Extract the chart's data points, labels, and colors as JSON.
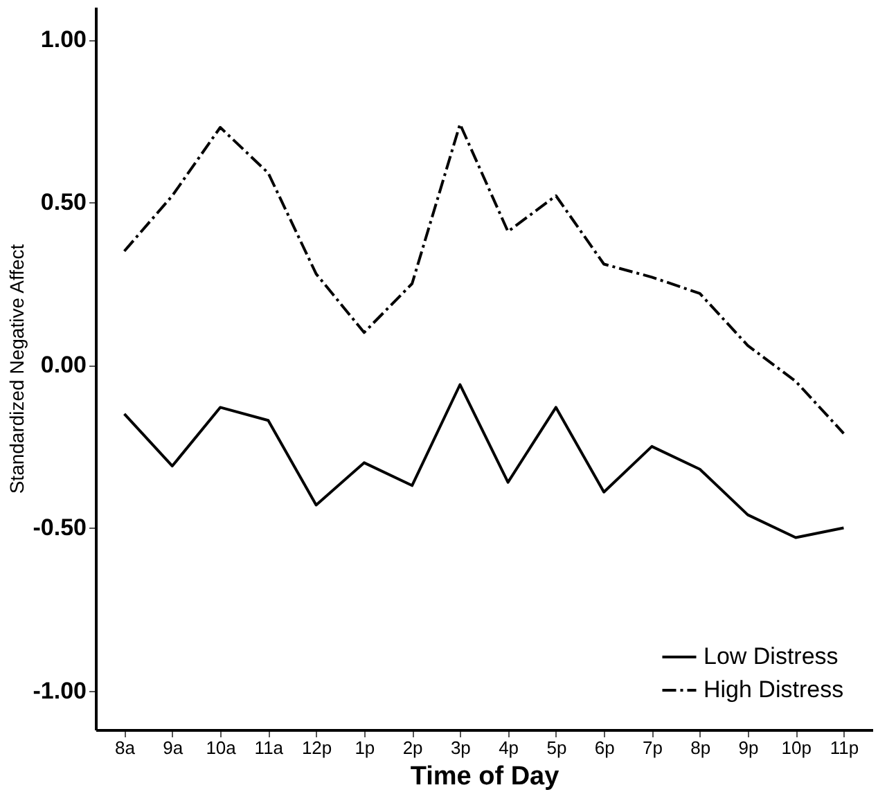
{
  "chart_data": {
    "type": "line",
    "xlabel": "Time of Day",
    "ylabel": "Standardized Negative Affect",
    "categories": [
      "8a",
      "9a",
      "10a",
      "11a",
      "12p",
      "1p",
      "2p",
      "3p",
      "4p",
      "5p",
      "6p",
      "7p",
      "8p",
      "9p",
      "10p",
      "11p"
    ],
    "series": [
      {
        "name": "Low Distress",
        "color": "#000000",
        "line_style": "solid",
        "values": [
          -0.15,
          -0.31,
          -0.13,
          -0.17,
          -0.43,
          -0.3,
          -0.37,
          -0.06,
          -0.36,
          -0.13,
          -0.39,
          -0.25,
          -0.32,
          -0.46,
          -0.53,
          -0.5
        ]
      },
      {
        "name": "High Distress",
        "color": "#000000",
        "line_style": "dashdot",
        "values": [
          0.35,
          0.52,
          0.73,
          0.59,
          0.28,
          0.1,
          0.25,
          0.74,
          0.41,
          0.52,
          0.31,
          0.27,
          0.22,
          0.06,
          -0.05,
          -0.21
        ]
      }
    ],
    "ylim": [
      -1.12,
      1.1
    ],
    "yticks": [
      {
        "value": -1,
        "label": "-1.00"
      },
      {
        "value": -0.5,
        "label": "-0.50"
      },
      {
        "value": 0,
        "label": "0.00"
      },
      {
        "value": 0.5,
        "label": "0.50"
      },
      {
        "value": 1,
        "label": "1.00"
      }
    ],
    "grid": false,
    "legend": "bottom right",
    "marker": "none"
  }
}
